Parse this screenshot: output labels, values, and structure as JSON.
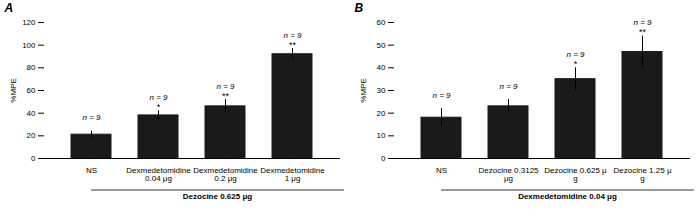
{
  "chart_data": [
    {
      "type": "bar",
      "title": "A",
      "categories": [
        "NS",
        "Dexmedetomidine\n0.04 μg",
        "Dexmedetomidine\n0.2 μg",
        "Dexmedetomidine\n1 μg"
      ],
      "values": [
        21,
        38,
        46,
        92
      ],
      "errors": [
        3,
        4,
        6,
        5
      ],
      "color": "#1a1a1a",
      "ylim": [
        0,
        120
      ],
      "yticks": [
        0,
        20,
        40,
        60,
        80,
        100,
        120
      ],
      "ylabel": "%MPE",
      "xlabel": "Dezocine 0.625 μg",
      "n_labels": [
        "n = 9",
        "n = 9",
        "n = 9",
        "n = 9"
      ],
      "sig_labels": [
        null,
        "*",
        "**",
        "**"
      ],
      "grid": false
    },
    {
      "type": "bar",
      "title": "B",
      "categories": [
        "NS",
        "Dezocine 0.3125\nμg",
        "Dezocine 0.625 μ\ng",
        "Dezocine 1.25 μ\ng"
      ],
      "values": [
        18,
        23,
        35,
        47
      ],
      "errors": [
        4,
        3,
        5,
        7
      ],
      "color": "#1a1a1a",
      "ylim": [
        0,
        60
      ],
      "yticks": [
        0,
        10,
        20,
        30,
        40,
        50,
        60
      ],
      "ylabel": "%MPE",
      "xlabel": "Dexmedetomidine 0.04 μg",
      "n_labels": [
        "n = 9",
        "n = 9",
        "n = 9",
        "n = 9"
      ],
      "sig_labels": [
        null,
        null,
        "*",
        "**"
      ],
      "grid": false
    }
  ]
}
